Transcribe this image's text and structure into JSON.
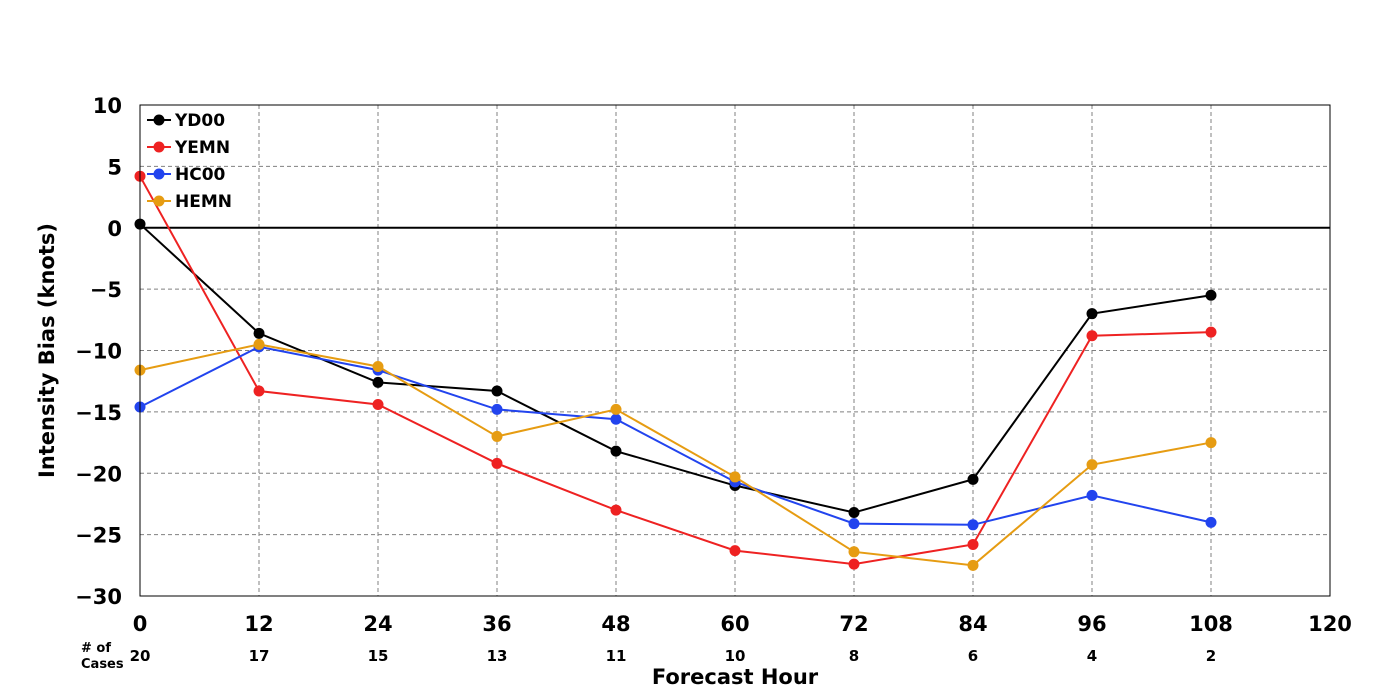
{
  "chart_data": {
    "type": "line",
    "xlabel": "Forecast Hour",
    "ylabel": "Intensity Bias (knots)",
    "xlim": [
      0,
      120
    ],
    "ylim": [
      -30,
      10
    ],
    "xticks": [
      0,
      12,
      24,
      36,
      48,
      60,
      72,
      84,
      96,
      108,
      120
    ],
    "yticks": [
      10,
      5,
      0,
      -5,
      -10,
      -15,
      -20,
      -25,
      -30
    ],
    "ytick_labels": [
      "10",
      "5",
      "0",
      "−5",
      "−10",
      "−15",
      "−20",
      "−25",
      "−30"
    ],
    "grid": true,
    "legend_position": "top-left",
    "cases_header": [
      "# of",
      "Cases"
    ],
    "cases": [
      {
        "x": 0,
        "n": "20"
      },
      {
        "x": 12,
        "n": "17"
      },
      {
        "x": 24,
        "n": "15"
      },
      {
        "x": 36,
        "n": "13"
      },
      {
        "x": 48,
        "n": "11"
      },
      {
        "x": 60,
        "n": "10"
      },
      {
        "x": 72,
        "n": "8"
      },
      {
        "x": 84,
        "n": "6"
      },
      {
        "x": 96,
        "n": "4"
      },
      {
        "x": 108,
        "n": "2"
      }
    ],
    "x": [
      0,
      12,
      24,
      36,
      48,
      60,
      72,
      84,
      96,
      108
    ],
    "series": [
      {
        "name": "YD00",
        "color": "#000000",
        "values": [
          0.3,
          -8.6,
          -12.6,
          -13.3,
          -18.2,
          -21.0,
          -23.2,
          -20.5,
          -7.0,
          -5.5
        ]
      },
      {
        "name": "YEMN",
        "color": "#ee2222",
        "values": [
          4.2,
          -13.3,
          -14.4,
          -19.2,
          -23.0,
          -26.3,
          -27.4,
          -25.8,
          -8.8,
          -8.5
        ]
      },
      {
        "name": "HC00",
        "color": "#2244ee",
        "values": [
          -14.6,
          -9.7,
          -11.6,
          -14.8,
          -15.6,
          -20.7,
          -24.1,
          -24.2,
          -21.8,
          -24.0
        ]
      },
      {
        "name": "HEMN",
        "color": "#e69c12",
        "values": [
          -11.6,
          -9.5,
          -11.3,
          -17.0,
          -14.8,
          -20.3,
          -26.4,
          -27.5,
          -19.3,
          -17.5
        ]
      }
    ]
  }
}
